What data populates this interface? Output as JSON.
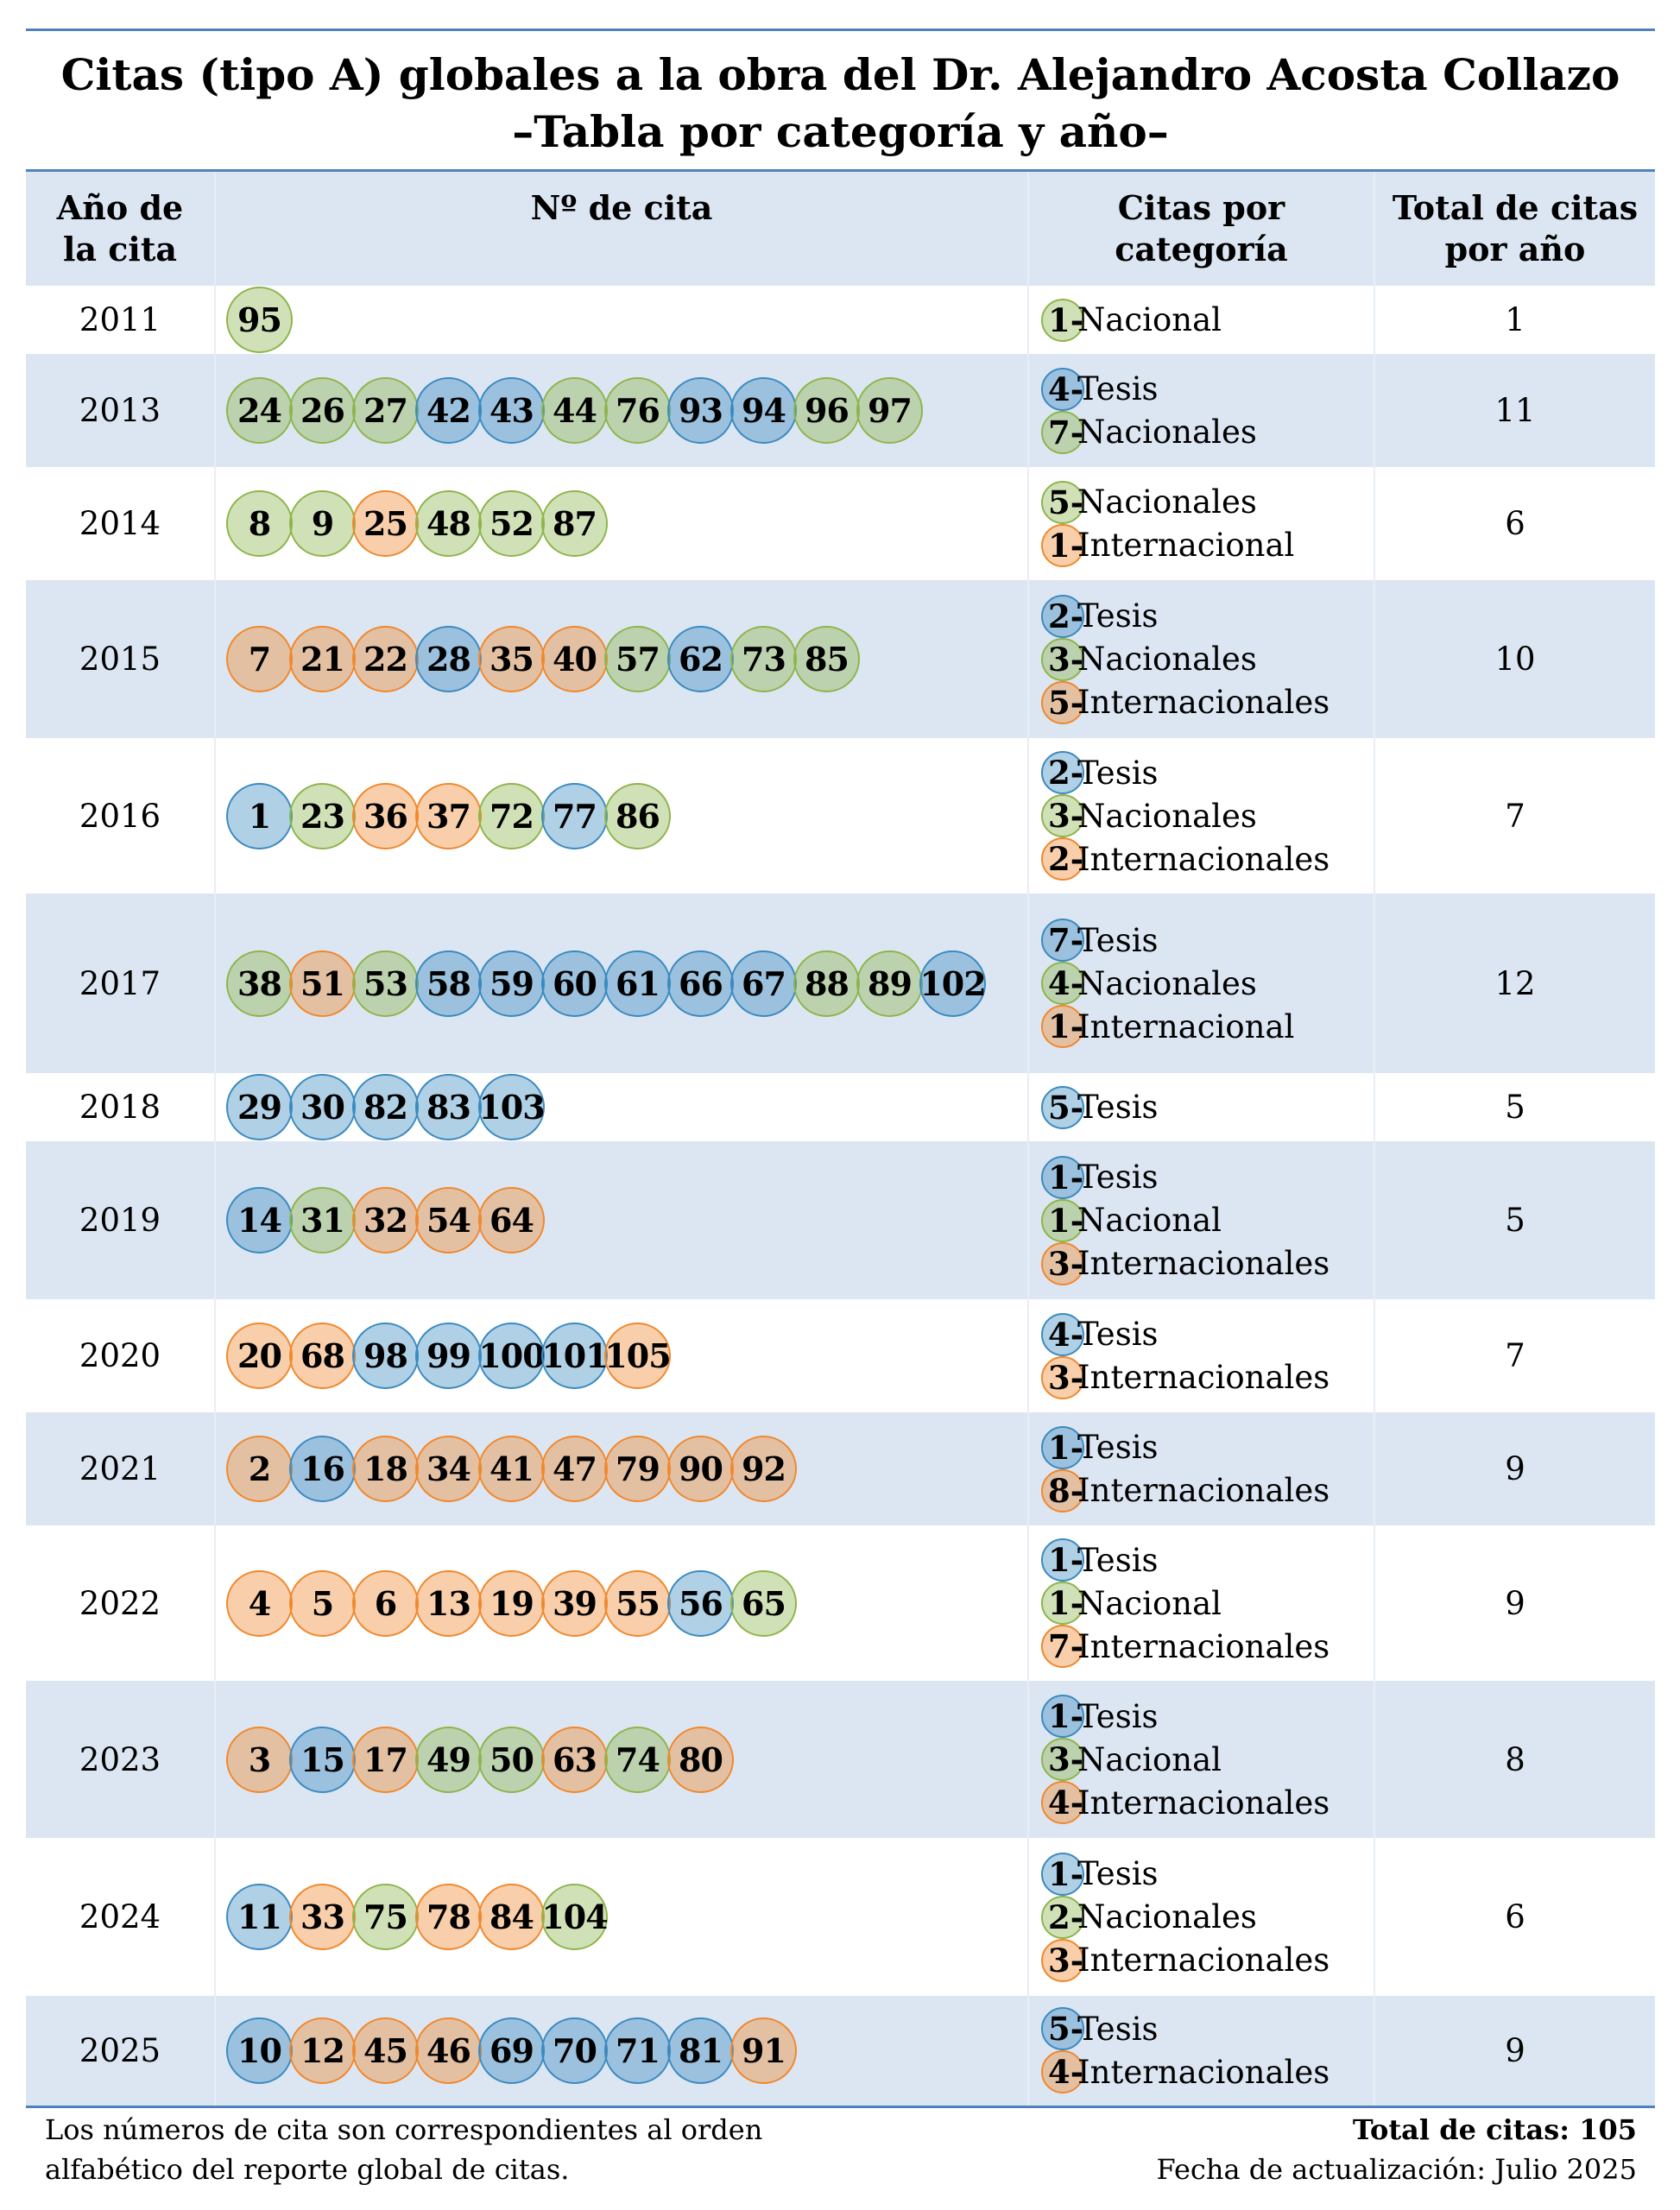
{
  "header": {
    "title_lines": [
      "Citas (tipo A) globales a la obra del Dr. Alejandro Acosta Collazo",
      "–Tabla por categoría y año–"
    ]
  },
  "table": {
    "columns": [
      "Año de\nla cita",
      "Nº de cita",
      "Citas por\ncategoría",
      "Total de citas\npor año"
    ],
    "rows": [
      {
        "year": "2011",
        "citations": [
          {
            "n": 95,
            "color": "#8db54b"
          }
        ],
        "categories": [
          {
            "count": "1-",
            "label": "Nacional",
            "color": "#8db54b"
          }
        ],
        "total": 1
      },
      {
        "year": "2013",
        "citations": [
          {
            "n": 24,
            "color": "#8db54b"
          },
          {
            "n": 26,
            "color": "#8db54b"
          },
          {
            "n": 27,
            "color": "#8db54b"
          },
          {
            "n": 42,
            "color": "#3a8ac0"
          },
          {
            "n": 43,
            "color": "#3a8ac0"
          },
          {
            "n": 44,
            "color": "#8db54b"
          },
          {
            "n": 76,
            "color": "#8db54b"
          },
          {
            "n": 93,
            "color": "#3a8ac0"
          },
          {
            "n": 94,
            "color": "#3a8ac0"
          },
          {
            "n": 96,
            "color": "#8db54b"
          },
          {
            "n": 97,
            "color": "#8db54b"
          }
        ],
        "categories": [
          {
            "count": "4-",
            "label": "Tesis",
            "color": "#3a8ac0"
          },
          {
            "count": "7-",
            "label": "Nacionales",
            "color": "#8db54b"
          }
        ],
        "total": 11
      },
      {
        "year": "2014",
        "citations": [
          {
            "n": 8,
            "color": "#8db54b"
          },
          {
            "n": 9,
            "color": "#8db54b"
          },
          {
            "n": 25,
            "color": "#f0882c"
          },
          {
            "n": 48,
            "color": "#8db54b"
          },
          {
            "n": 52,
            "color": "#8db54b"
          },
          {
            "n": 87,
            "color": "#8db54b"
          }
        ],
        "categories": [
          {
            "count": "5-",
            "label": "Nacionales",
            "color": "#8db54b"
          },
          {
            "count": "1-",
            "label": "Internacional",
            "color": "#f0882c"
          }
        ],
        "total": 6
      },
      {
        "year": "2015",
        "citations": [
          {
            "n": 7,
            "color": "#f0882c"
          },
          {
            "n": 21,
            "color": "#f0882c"
          },
          {
            "n": 22,
            "color": "#f0882c"
          },
          {
            "n": 28,
            "color": "#3a8ac0"
          },
          {
            "n": 35,
            "color": "#f0882c"
          },
          {
            "n": 40,
            "color": "#f0882c"
          },
          {
            "n": 57,
            "color": "#8db54b"
          },
          {
            "n": 62,
            "color": "#3a8ac0"
          },
          {
            "n": 73,
            "color": "#8db54b"
          },
          {
            "n": 85,
            "color": "#8db54b"
          }
        ],
        "categories": [
          {
            "count": "2-",
            "label": "Tesis",
            "color": "#3a8ac0"
          },
          {
            "count": "3-",
            "label": "Nacionales",
            "color": "#8db54b"
          },
          {
            "count": "5-",
            "label": "Internacionales",
            "color": "#f0882c"
          }
        ],
        "total": 10
      },
      {
        "year": "2016",
        "citations": [
          {
            "n": 1,
            "color": "#3a8ac0"
          },
          {
            "n": 23,
            "color": "#8db54b"
          },
          {
            "n": 36,
            "color": "#f0882c"
          },
          {
            "n": 37,
            "color": "#f0882c"
          },
          {
            "n": 72,
            "color": "#8db54b"
          },
          {
            "n": 77,
            "color": "#3a8ac0"
          },
          {
            "n": 86,
            "color": "#8db54b"
          }
        ],
        "categories": [
          {
            "count": "2-",
            "label": "Tesis",
            "color": "#3a8ac0"
          },
          {
            "count": "3-",
            "label": "Nacionales",
            "color": "#8db54b"
          },
          {
            "count": "2-",
            "label": "Internacionales",
            "color": "#f0882c"
          }
        ],
        "total": 7
      },
      {
        "year": "2017",
        "citations": [
          {
            "n": 38,
            "color": "#8db54b"
          },
          {
            "n": 51,
            "color": "#f0882c"
          },
          {
            "n": 53,
            "color": "#8db54b"
          },
          {
            "n": 58,
            "color": "#3a8ac0"
          },
          {
            "n": 59,
            "color": "#3a8ac0"
          },
          {
            "n": 60,
            "color": "#3a8ac0"
          },
          {
            "n": 61,
            "color": "#3a8ac0"
          },
          {
            "n": 66,
            "color": "#3a8ac0"
          },
          {
            "n": 67,
            "color": "#3a8ac0"
          },
          {
            "n": 88,
            "color": "#8db54b"
          },
          {
            "n": 89,
            "color": "#8db54b"
          },
          {
            "n": 102,
            "color": "#3a8ac0"
          }
        ],
        "categories": [
          {
            "count": "7-",
            "label": "Tesis",
            "color": "#3a8ac0"
          },
          {
            "count": "4-",
            "label": "Nacionales",
            "color": "#8db54b"
          },
          {
            "count": "1-",
            "label": "Internacional",
            "color": "#f0882c"
          }
        ],
        "total": 12
      },
      {
        "year": "2018",
        "citations": [
          {
            "n": 29,
            "color": "#3a8ac0"
          },
          {
            "n": 30,
            "color": "#3a8ac0"
          },
          {
            "n": 82,
            "color": "#3a8ac0"
          },
          {
            "n": 83,
            "color": "#3a8ac0"
          },
          {
            "n": 103,
            "color": "#3a8ac0"
          }
        ],
        "categories": [
          {
            "count": "5-",
            "label": "Tesis",
            "color": "#3a8ac0"
          }
        ],
        "total": 5
      },
      {
        "year": "2019",
        "citations": [
          {
            "n": 14,
            "color": "#3a8ac0"
          },
          {
            "n": 31,
            "color": "#8db54b"
          },
          {
            "n": 32,
            "color": "#f0882c"
          },
          {
            "n": 54,
            "color": "#f0882c"
          },
          {
            "n": 64,
            "color": "#f0882c"
          }
        ],
        "categories": [
          {
            "count": "1-",
            "label": "Tesis",
            "color": "#3a8ac0"
          },
          {
            "count": "1-",
            "label": "Nacional",
            "color": "#8db54b"
          },
          {
            "count": "3-",
            "label": "Internacionales",
            "color": "#f0882c"
          }
        ],
        "total": 5
      },
      {
        "year": "2020",
        "citations": [
          {
            "n": 20,
            "color": "#f0882c"
          },
          {
            "n": 68,
            "color": "#f0882c"
          },
          {
            "n": 98,
            "color": "#3a8ac0"
          },
          {
            "n": 99,
            "color": "#3a8ac0"
          },
          {
            "n": 100,
            "color": "#3a8ac0"
          },
          {
            "n": 101,
            "color": "#3a8ac0"
          },
          {
            "n": 105,
            "color": "#f0882c"
          }
        ],
        "categories": [
          {
            "count": "4-",
            "label": "Tesis",
            "color": "#3a8ac0"
          },
          {
            "count": "3-",
            "label": "Internacionales",
            "color": "#f0882c"
          }
        ],
        "total": 7
      },
      {
        "year": "2021",
        "citations": [
          {
            "n": 2,
            "color": "#f0882c"
          },
          {
            "n": 16,
            "color": "#3a8ac0"
          },
          {
            "n": 18,
            "color": "#f0882c"
          },
          {
            "n": 34,
            "color": "#f0882c"
          },
          {
            "n": 41,
            "color": "#f0882c"
          },
          {
            "n": 47,
            "color": "#f0882c"
          },
          {
            "n": 79,
            "color": "#f0882c"
          },
          {
            "n": 90,
            "color": "#f0882c"
          },
          {
            "n": 92,
            "color": "#f0882c"
          }
        ],
        "categories": [
          {
            "count": "1-",
            "label": "Tesis",
            "color": "#3a8ac0"
          },
          {
            "count": "8-",
            "label": "Internacionales",
            "color": "#f0882c"
          }
        ],
        "total": 9
      },
      {
        "year": "2022",
        "citations": [
          {
            "n": 4,
            "color": "#f0882c"
          },
          {
            "n": 5,
            "color": "#f0882c"
          },
          {
            "n": 6,
            "color": "#f0882c"
          },
          {
            "n": 13,
            "color": "#f0882c"
          },
          {
            "n": 19,
            "color": "#f0882c"
          },
          {
            "n": 39,
            "color": "#f0882c"
          },
          {
            "n": 55,
            "color": "#f0882c"
          },
          {
            "n": 56,
            "color": "#3a8ac0"
          },
          {
            "n": 65,
            "color": "#8db54b"
          }
        ],
        "categories": [
          {
            "count": "1-",
            "label": "Tesis",
            "color": "#3a8ac0"
          },
          {
            "count": "1-",
            "label": "Nacional",
            "color": "#8db54b"
          },
          {
            "count": "7-",
            "label": "Internacionales",
            "color": "#f0882c"
          }
        ],
        "total": 9
      },
      {
        "year": "2023",
        "citations": [
          {
            "n": 3,
            "color": "#f0882c"
          },
          {
            "n": 15,
            "color": "#3a8ac0"
          },
          {
            "n": 17,
            "color": "#f0882c"
          },
          {
            "n": 49,
            "color": "#8db54b"
          },
          {
            "n": 50,
            "color": "#8db54b"
          },
          {
            "n": 63,
            "color": "#f0882c"
          },
          {
            "n": 74,
            "color": "#8db54b"
          },
          {
            "n": 80,
            "color": "#f0882c"
          }
        ],
        "categories": [
          {
            "count": "1-",
            "label": "Tesis",
            "color": "#3a8ac0"
          },
          {
            "count": "3-",
            "label": "Nacional",
            "color": "#8db54b"
          },
          {
            "count": "4-",
            "label": "Internacionales",
            "color": "#f0882c"
          }
        ],
        "total": 8
      },
      {
        "year": "2024",
        "citations": [
          {
            "n": 11,
            "color": "#3a8ac0"
          },
          {
            "n": 33,
            "color": "#f0882c"
          },
          {
            "n": 75,
            "color": "#8db54b"
          },
          {
            "n": 78,
            "color": "#f0882c"
          },
          {
            "n": 84,
            "color": "#f0882c"
          },
          {
            "n": 104,
            "color": "#8db54b"
          }
        ],
        "categories": [
          {
            "count": "1-",
            "label": "Tesis",
            "color": "#3a8ac0"
          },
          {
            "count": "2-",
            "label": "Nacionales",
            "color": "#8db54b"
          },
          {
            "count": "3-",
            "label": "Internacionales",
            "color": "#f0882c"
          }
        ],
        "total": 6
      },
      {
        "year": "2025",
        "citations": [
          {
            "n": 10,
            "color": "#3a8ac0"
          },
          {
            "n": 12,
            "color": "#f0882c"
          },
          {
            "n": 45,
            "color": "#f0882c"
          },
          {
            "n": 46,
            "color": "#f0882c"
          },
          {
            "n": 69,
            "color": "#3a8ac0"
          },
          {
            "n": 70,
            "color": "#3a8ac0"
          },
          {
            "n": 71,
            "color": "#3a8ac0"
          },
          {
            "n": 81,
            "color": "#3a8ac0"
          },
          {
            "n": 91,
            "color": "#f0882c"
          }
        ],
        "categories": [
          {
            "count": "5-",
            "label": "Tesis",
            "color": "#3a8ac0"
          },
          {
            "count": "4-",
            "label": "Internacionales",
            "color": "#f0882c"
          }
        ],
        "total": 9
      }
    ]
  },
  "footer": {
    "note_lines": [
      "Los números de cita son correspondientes al orden",
      "alfabético del reporte global de citas."
    ],
    "total": "Total de citas: 105",
    "updated": "Fecha de actualización: Julio 2025"
  }
}
